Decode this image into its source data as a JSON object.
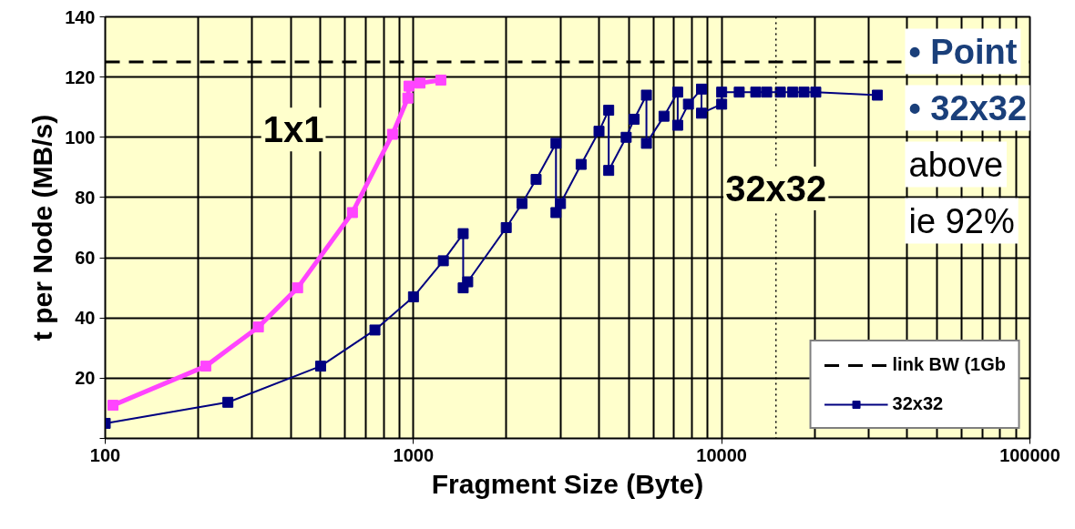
{
  "chart_data": {
    "type": "line",
    "xlabel": "Fragment Size (Byte)",
    "ylabel": "t per Node (MB/s)",
    "log": "x",
    "xlim": [
      100,
      100000
    ],
    "xticks": [
      100,
      1000,
      10000,
      100000
    ],
    "ylim": [
      0,
      140
    ],
    "yticks": [
      {
        "value": 0,
        "label": null
      },
      20,
      40,
      60,
      80,
      100,
      120,
      140
    ],
    "grid": true,
    "legend": "bottom right",
    "marker": "square",
    "series": [
      {
        "name": "link BW (1Gb",
        "color": "#000000",
        "line_style": "dashed",
        "marker": "none",
        "x": [
          100,
          100000
        ],
        "values": [
          125,
          125
        ]
      },
      {
        "name": "32x32",
        "color": "#000080",
        "x": [
          100,
          250,
          500,
          750,
          1000,
          1250,
          1450,
          1450,
          1500,
          2000,
          2250,
          2500,
          2900,
          2900,
          3000,
          3500,
          4000,
          4300,
          4300,
          4900,
          5200,
          5700,
          5700,
          6500,
          7200,
          7200,
          7800,
          8600,
          8600,
          10000,
          10000,
          11400,
          12900,
          14000,
          15500,
          17000,
          18500,
          20200,
          32000
        ],
        "values": [
          5,
          12,
          24,
          36,
          47,
          59,
          68,
          50,
          52,
          70,
          78,
          86,
          98,
          75,
          78,
          91,
          102,
          109,
          89,
          100,
          106,
          114,
          98,
          107,
          115,
          104,
          111,
          116,
          108,
          111,
          115,
          115,
          115,
          115,
          115,
          115,
          115,
          115,
          114
        ]
      },
      {
        "name": "1x1",
        "color": "#ff44ff",
        "x": [
          106,
          212,
          314,
          421,
          634,
          855,
          959,
          967,
          1050,
          1227
        ],
        "values": [
          11,
          24,
          37,
          50,
          75,
          101,
          113,
          117,
          118,
          119
        ]
      }
    ],
    "ref_lines": [
      {
        "axis": "x",
        "value": 15000,
        "label": null,
        "color": "#000000",
        "line_style": "dotted"
      }
    ],
    "annotations": [
      {
        "text": "32x32",
        "x": 15000,
        "y": 83
      },
      "• Point",
      "• 32x32",
      "above",
      "ie 92%"
    ]
  }
}
